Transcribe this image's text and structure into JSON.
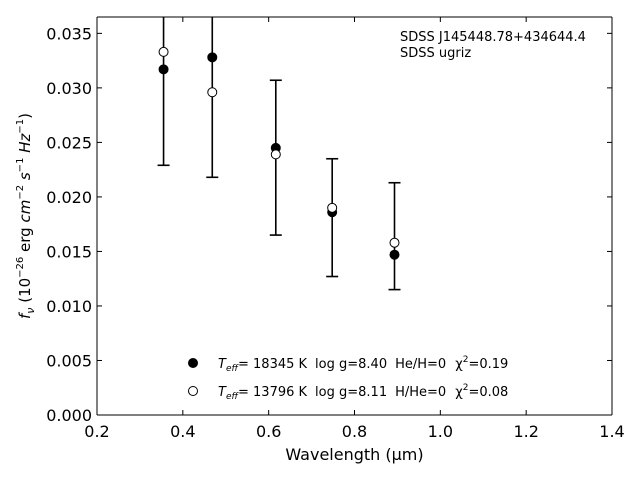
{
  "chart_data": {
    "type": "scatter",
    "xlabel": "Wavelength (μm)",
    "ylabel": "fν (10⁻²⁶ erg cm⁻² s⁻¹ Hz⁻¹)",
    "xlim": [
      0.2,
      1.4
    ],
    "ylim": [
      0.0,
      0.0365
    ],
    "x_ticks": [
      0.2,
      0.4,
      0.6,
      0.8,
      1.0,
      1.2,
      1.4
    ],
    "x_tick_labels": [
      "0.2",
      "0.4",
      "0.6",
      "0.8",
      "1.0",
      "1.2",
      "1.4"
    ],
    "y_ticks": [
      0.0,
      0.005,
      0.01,
      0.015,
      0.02,
      0.025,
      0.03,
      0.035
    ],
    "y_tick_labels": [
      "0.000",
      "0.005",
      "0.010",
      "0.015",
      "0.020",
      "0.025",
      "0.030",
      "0.035"
    ],
    "annotations": [
      "SDSS J145448.78+434644.4",
      "SDSS ugriz"
    ],
    "legend_placement": "lower-center",
    "grid": false,
    "observed": {
      "x": [
        0.3551,
        0.4686,
        0.6166,
        0.748,
        0.8932
      ],
      "y_low": [
        0.0229,
        0.0218,
        0.0165,
        0.0127,
        0.0115
      ],
      "y_high": [
        0.0365,
        0.0365,
        0.0307,
        0.0235,
        0.0213
      ]
    },
    "series": [
      {
        "name": "T_eff= 18345 K  log g=8.40  He/H=0  χ²=0.19",
        "marker": "filled-circle",
        "color": "#000000",
        "x": [
          0.3551,
          0.4686,
          0.6166,
          0.748,
          0.8932
        ],
        "y": [
          0.0317,
          0.0328,
          0.0245,
          0.0186,
          0.0147
        ]
      },
      {
        "name": "T_eff= 13796 K  log g=8.11  H/He=0  χ²=0.08",
        "marker": "open-circle",
        "color": "#000000",
        "x": [
          0.3551,
          0.4686,
          0.6166,
          0.748,
          0.8932
        ],
        "y": [
          0.0333,
          0.0296,
          0.0239,
          0.019,
          0.0158
        ]
      }
    ]
  },
  "legend": [
    {
      "teff_label": "T",
      "teff_sub": "eff",
      "teff_value": "= 18345 K",
      "logg": "log g=8.40",
      "comp": "He/H=0",
      "chi_label": "χ",
      "chi_sup": "2",
      "chi_value": "=0.19"
    },
    {
      "teff_label": "T",
      "teff_sub": "eff",
      "teff_value": "= 13796 K",
      "logg": "log g=8.11",
      "comp": "H/He=0",
      "chi_label": "χ",
      "chi_sup": "2",
      "chi_value": "=0.08"
    }
  ]
}
